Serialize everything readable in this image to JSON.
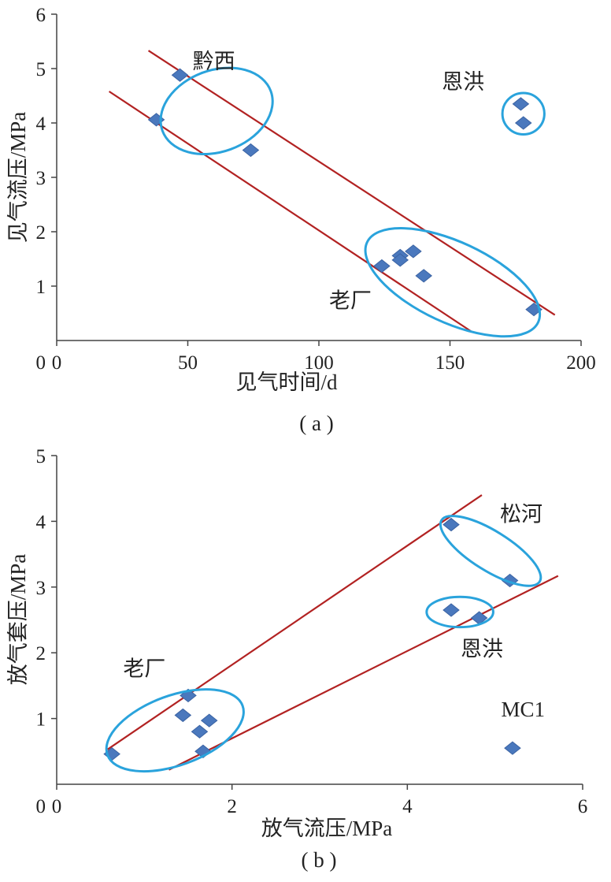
{
  "chart_data": [
    {
      "type": "scatter",
      "panel_label": "( a )",
      "xlabel": "见气时间/d",
      "ylabel": "见气流压/MPa",
      "xlim": [
        0,
        200
      ],
      "ylim": [
        0,
        6
      ],
      "xticks": [
        0,
        50,
        100,
        150,
        200
      ],
      "yticks": [
        1,
        2,
        3,
        4,
        5,
        6
      ],
      "grid": false,
      "marker": "diamond",
      "colors": {
        "points": "#4a78bd",
        "lines": "#b22222",
        "ellipses": "#2aa3dc"
      },
      "points": [
        {
          "x": 47,
          "y": 4.88
        },
        {
          "x": 38,
          "y": 4.06
        },
        {
          "x": 74,
          "y": 3.5
        },
        {
          "x": 124,
          "y": 1.37
        },
        {
          "x": 131,
          "y": 1.56
        },
        {
          "x": 131,
          "y": 1.48
        },
        {
          "x": 136,
          "y": 1.64
        },
        {
          "x": 140,
          "y": 1.19
        },
        {
          "x": 182,
          "y": 0.57
        },
        {
          "x": 177,
          "y": 4.35
        },
        {
          "x": 178,
          "y": 4.0
        }
      ],
      "trend_lines": [
        {
          "x1": 35,
          "y1": 5.33,
          "x2": 190,
          "y2": 0.47
        },
        {
          "x1": 20,
          "y1": 4.58,
          "x2": 158,
          "y2": 0.17
        }
      ],
      "groups": [
        {
          "label": "黔西",
          "cx": 61,
          "cy": 4.22,
          "rx": 22,
          "ry": 0.75,
          "angle": -20,
          "label_x": 60,
          "label_y": 5.0
        },
        {
          "label": "恩洪",
          "cx": 178,
          "cy": 4.17,
          "rx": 8,
          "ry": 0.38,
          "angle": 0,
          "label_x": 155,
          "label_y": 4.62
        },
        {
          "label": "老厂",
          "cx": 151,
          "cy": 1.07,
          "rx": 36,
          "ry": 0.74,
          "angle": 25,
          "label_x": 112,
          "label_y": 0.6
        }
      ]
    },
    {
      "type": "scatter",
      "panel_label": "( b )",
      "xlabel": "放气流压/MPa",
      "ylabel": "放气套压/MPa",
      "xlim": [
        0,
        6
      ],
      "ylim": [
        0,
        5
      ],
      "xticks": [
        0,
        2,
        4,
        6
      ],
      "yticks": [
        1,
        2,
        3,
        4,
        5
      ],
      "grid": false,
      "marker": "diamond",
      "colors": {
        "points": "#4a78bd",
        "lines": "#b22222",
        "ellipses": "#2aa3dc"
      },
      "points": [
        {
          "x": 0.63,
          "y": 0.46
        },
        {
          "x": 1.44,
          "y": 1.05
        },
        {
          "x": 1.5,
          "y": 1.35
        },
        {
          "x": 1.63,
          "y": 0.8
        },
        {
          "x": 1.74,
          "y": 0.97
        },
        {
          "x": 1.67,
          "y": 0.5
        },
        {
          "x": 4.5,
          "y": 3.95
        },
        {
          "x": 5.17,
          "y": 3.1
        },
        {
          "x": 4.5,
          "y": 2.65
        },
        {
          "x": 4.82,
          "y": 2.53
        },
        {
          "x": 5.2,
          "y": 0.55
        }
      ],
      "trend_lines": [
        {
          "x1": 0.58,
          "y1": 0.53,
          "x2": 4.85,
          "y2": 4.4
        },
        {
          "x1": 1.28,
          "y1": 0.22,
          "x2": 5.72,
          "y2": 3.17
        }
      ],
      "groups": [
        {
          "label": "老厂",
          "cx": 1.35,
          "cy": 0.82,
          "rx": 0.82,
          "ry": 0.53,
          "angle": -20,
          "label_x": 1.0,
          "label_y": 1.65
        },
        {
          "label": "松河",
          "cx": 4.95,
          "cy": 3.55,
          "rx": 0.66,
          "ry": 0.3,
          "angle": 32,
          "label_x": 5.3,
          "label_y": 4.0
        },
        {
          "label": "恩洪",
          "cx": 4.6,
          "cy": 2.62,
          "rx": 0.38,
          "ry": 0.23,
          "angle": 0,
          "label_x": 4.85,
          "label_y": 1.95
        }
      ],
      "point_labels": [
        {
          "label": "MC1",
          "x": 5.32,
          "y": 1.03
        }
      ]
    }
  ]
}
